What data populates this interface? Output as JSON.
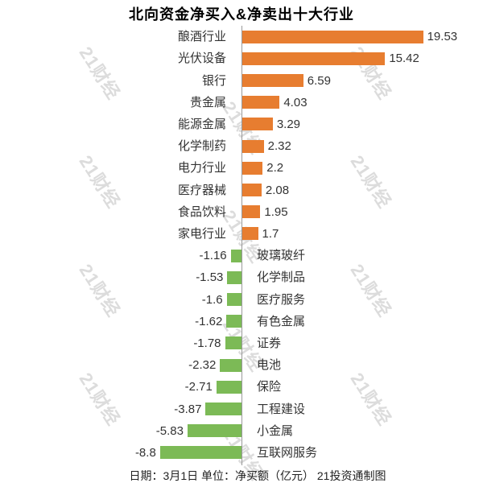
{
  "title": "北向资金净买入&净卖出十大行业",
  "watermark": {
    "text": "21财经"
  },
  "footer": {
    "text": "日期：3月1日 单位：净买额（亿元） 21投资通制图"
  },
  "colors": {
    "positive_bar": "#E77D30",
    "negative_bar": "#7CBA56",
    "axis_line": "#999999",
    "label_text": "#333333",
    "title_text": "#000000",
    "watermark_text": "#DCDCDC",
    "background": "#FFFFFF"
  },
  "chart_data": {
    "type": "bar",
    "orientation": "horizontal",
    "title": "北向资金净买入&净卖出十大行业",
    "xlabel": "",
    "ylabel": "",
    "unit": "净买额（亿元）",
    "date": "3月1日",
    "source": "21投资通制图",
    "xlim": [
      -10,
      21
    ],
    "zero_axis": true,
    "grid": false,
    "legend": false,
    "categories": [
      "酿酒行业",
      "光伏设备",
      "银行",
      "贵金属",
      "能源金属",
      "化学制药",
      "电力行业",
      "医疗器械",
      "食品饮料",
      "家电行业",
      "玻璃玻纤",
      "化学制品",
      "医疗服务",
      "有色金属",
      "证券",
      "电池",
      "保险",
      "工程建设",
      "小金属",
      "互联网服务"
    ],
    "values": [
      19.53,
      15.42,
      6.59,
      4.03,
      3.29,
      2.32,
      2.2,
      2.08,
      1.95,
      1.7,
      -1.16,
      -1.53,
      -1.6,
      -1.62,
      -1.78,
      -2.32,
      -2.71,
      -3.87,
      -5.83,
      -8.8
    ]
  }
}
